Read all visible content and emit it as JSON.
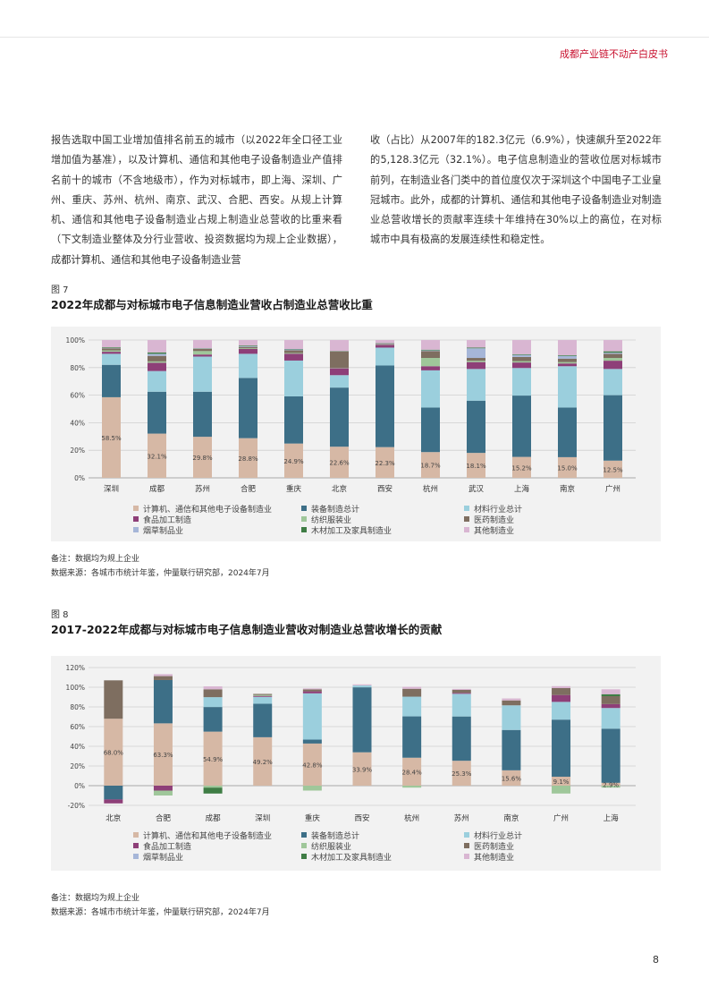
{
  "header": {
    "title": "成都产业链不动产白皮书"
  },
  "body": {
    "left_paragraph": "报告选取中国工业增加值排名前五的城市（以2022年全口径工业增加值为基准），以及计算机、通信和其他电子设备制造业产值排名前十的城市（不含地级市），作为对标城市，即上海、深圳、广州、重庆、苏州、杭州、南京、武汉、合肥、西安。从规上计算机、通信和其他电子设备制造业占规上制造业总营收的比重来看（下文制造业整体及分行业营收、投资数据均为规上企业数据），成都计算机、通信和其他电子设备制造业营",
    "right_paragraph": "收（占比）从2007年的182.3亿元（6.9%），快速飙升至2022年的5,128.3亿元（32.1%）。电子信息制造业的营收位居对标城市前列，在制造业各门类中的首位度仅次于深圳这个中国电子工业皇冠城市。此外，成都的计算机、通信和其他电子设备制造业对制造业总营收增长的贡献率连续十年维持在30%以上的高位，在对标城市中具有极高的发展连续性和稳定性。"
  },
  "categories_legend": [
    {
      "name": "计算机、通信和其他电子设备制造业",
      "color": "#d6b8a5"
    },
    {
      "name": "装备制造总计",
      "color": "#3d6f87"
    },
    {
      "name": "材料行业总计",
      "color": "#9bcfdd"
    },
    {
      "name": "食品加工制造",
      "color": "#8e3f78"
    },
    {
      "name": "纺织服装业",
      "color": "#9fc79a"
    },
    {
      "name": "医药制造业",
      "color": "#7e6e60"
    },
    {
      "name": "烟草制品业",
      "color": "#a6b6d8"
    },
    {
      "name": "木材加工及家具制造业",
      "color": "#3f7d45"
    },
    {
      "name": "其他制造业",
      "color": "#d9b6d2"
    }
  ],
  "figure7": {
    "label": "图 7",
    "title": "2022年成都与对标城市电子信息制造业营收占制造业总营收比重",
    "note": "备注：数据均为规上企业",
    "source": "数据来源：各城市市统计年鉴，仲量联行研究部，2024年7月",
    "chart_data": {
      "type": "bar",
      "stacked": true,
      "ylim": [
        0,
        100
      ],
      "yticks": [
        "0%",
        "20%",
        "40%",
        "60%",
        "80%",
        "100%"
      ],
      "grid": true,
      "legend_position": "bottom",
      "categories": [
        "深圳",
        "成都",
        "苏州",
        "合肥",
        "重庆",
        "北京",
        "西安",
        "杭州",
        "武汉",
        "上海",
        "南京",
        "广州"
      ],
      "data_labels": [
        "58.5%",
        "32.1%",
        "29.8%",
        "28.8%",
        "24.9%",
        "22.6%",
        "22.3%",
        "18.7%",
        "18.1%",
        "15.2%",
        "15.0%",
        "12.5%"
      ],
      "series": [
        {
          "name": "计算机、通信和其他电子设备制造业",
          "color": "#d6b8a5",
          "values": [
            58.5,
            32.1,
            29.8,
            28.8,
            24.9,
            22.6,
            22.3,
            18.7,
            18.1,
            15.2,
            15.0,
            12.5
          ]
        },
        {
          "name": "装备制造总计",
          "color": "#3d6f87",
          "values": [
            23.5,
            30.4,
            32.7,
            43.7,
            34.2,
            42.9,
            59.2,
            32.3,
            37.9,
            44.5,
            36.0,
            47.5
          ]
        },
        {
          "name": "材料行业总计",
          "color": "#9bcfdd",
          "values": [
            8.0,
            15.0,
            25.5,
            17.5,
            26.0,
            9.0,
            13.0,
            27.0,
            23.0,
            20.0,
            30.0,
            19.0
          ]
        },
        {
          "name": "食品加工制造",
          "color": "#8e3f78",
          "values": [
            1.5,
            6.0,
            1.5,
            3.5,
            5.0,
            5.0,
            2.0,
            3.0,
            5.0,
            4.0,
            2.0,
            6.0
          ]
        },
        {
          "name": "纺织服装业",
          "color": "#9fc79a",
          "values": [
            1.0,
            1.0,
            2.5,
            0.5,
            0.5,
            0.3,
            0.2,
            6.0,
            1.0,
            1.0,
            1.0,
            2.0
          ]
        },
        {
          "name": "医药制造业",
          "color": "#7e6e60",
          "values": [
            1.5,
            4.0,
            1.5,
            1.0,
            2.0,
            12.0,
            0.5,
            5.0,
            2.0,
            3.0,
            2.5,
            3.0
          ]
        },
        {
          "name": "烟草制品业",
          "color": "#a6b6d8",
          "values": [
            0.2,
            1.5,
            0.2,
            0.5,
            0.6,
            0.1,
            0.3,
            0.5,
            7.0,
            1.5,
            2.0,
            0.8
          ]
        },
        {
          "name": "木材加工及家具制造业",
          "color": "#3f7d45",
          "values": [
            0.5,
            1.0,
            0.3,
            0.5,
            0.3,
            0.2,
            0.2,
            0.5,
            0.5,
            0.5,
            0.5,
            1.0
          ]
        },
        {
          "name": "其他制造业",
          "color": "#d9b6d2",
          "values": [
            5.3,
            9.0,
            6.0,
            4.0,
            6.5,
            7.9,
            2.3,
            7.0,
            5.5,
            10.3,
            11.0,
            8.2
          ]
        }
      ]
    }
  },
  "figure8": {
    "label": "图 8",
    "title": "2017-2022年成都与对标城市电子信息制造业营收对制造业总营收增长的贡献",
    "note": "备注：数据均为规上企业",
    "source": "数据来源：各城市市统计年鉴，仲量联行研究部，2024年7月",
    "chart_data": {
      "type": "bar",
      "stacked": true,
      "ylim": [
        -20,
        120
      ],
      "yticks": [
        "-20%",
        "0%",
        "20%",
        "40%",
        "60%",
        "80%",
        "100%",
        "120%"
      ],
      "grid": true,
      "legend_position": "bottom",
      "categories": [
        "北京",
        "合肥",
        "成都",
        "深圳",
        "重庆",
        "西安",
        "杭州",
        "苏州",
        "南京",
        "广州",
        "上海"
      ],
      "data_labels": [
        "68.0%",
        "63.3%",
        "54.9%",
        "49.2%",
        "42.8%",
        "33.9%",
        "28.4%",
        "25.3%",
        "15.6%",
        "9.1%",
        "2.9%"
      ],
      "series": [
        {
          "name": "计算机、通信和其他电子设备制造业",
          "color": "#d6b8a5",
          "values": [
            68.0,
            63.3,
            54.9,
            49.2,
            42.8,
            33.9,
            28.4,
            25.3,
            15.6,
            9.1,
            2.9
          ]
        },
        {
          "name": "装备制造总计",
          "color": "#3d6f87",
          "values": [
            -14,
            44,
            25,
            34,
            4,
            66,
            42,
            45,
            41,
            58,
            55
          ]
        },
        {
          "name": "材料行业总计",
          "color": "#9bcfdd",
          "values": [
            0,
            0,
            10,
            7,
            47,
            2,
            20,
            23,
            25,
            18,
            21
          ]
        },
        {
          "name": "食品加工制造",
          "color": "#8e3f78",
          "values": [
            -4,
            -5,
            0,
            1,
            2,
            0,
            0,
            1,
            0,
            7,
            4
          ]
        },
        {
          "name": "纺织服装业",
          "color": "#9fc79a",
          "values": [
            0,
            -5,
            -2,
            1,
            -5,
            0,
            -2,
            0,
            0,
            -8,
            -2
          ]
        },
        {
          "name": "医药制造业",
          "color": "#7e6e60",
          "values": [
            39,
            4,
            8,
            1,
            2,
            0,
            8,
            3,
            5,
            7,
            8
          ]
        },
        {
          "name": "烟草制品业",
          "color": "#a6b6d8",
          "values": [
            0,
            0,
            0,
            0,
            0,
            0,
            0,
            0,
            0,
            0,
            0
          ]
        },
        {
          "name": "木材加工及家具制造业",
          "color": "#3f7d45",
          "values": [
            0,
            0,
            -6,
            0,
            0,
            0,
            0,
            0,
            0,
            0,
            2
          ]
        },
        {
          "name": "其他制造业",
          "color": "#d9b6d2",
          "values": [
            0,
            2,
            3,
            0,
            1,
            1,
            2,
            1,
            2,
            2,
            5
          ]
        }
      ]
    }
  },
  "page_number": "8"
}
